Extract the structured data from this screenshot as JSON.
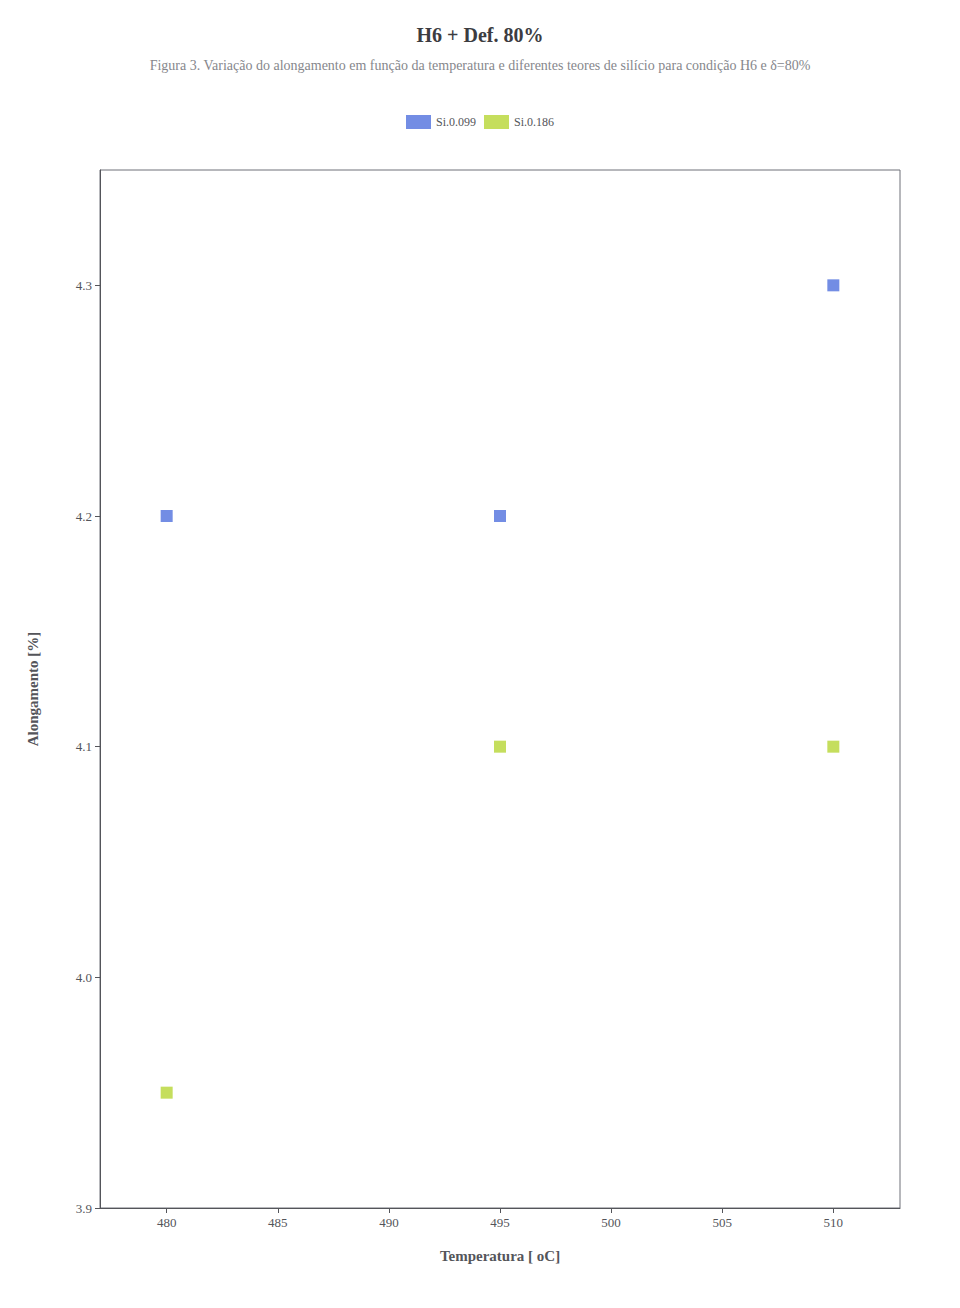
{
  "chart_data": {
    "type": "scatter",
    "title": "H6 + Def. 80%",
    "subtitle": "Figura 3. Variação do alongamento em função da temperatura e diferentes teores de silício para condição H6 e δ=80%",
    "x_label": "Temperatura [ oC]",
    "y_label": "Alongamento [%]",
    "xlim": [
      477,
      513
    ],
    "ylim": [
      3.9,
      4.35
    ],
    "xticks": [
      480,
      485,
      490,
      495,
      500,
      505,
      510
    ],
    "yticks": [
      3.9,
      {
        "value": 4,
        "label": "4.0"
      },
      4.1,
      4.2,
      4.3
    ],
    "marker": "square",
    "grid": false,
    "legend": "top",
    "series": [
      {
        "name": "Si.0.099",
        "x": [
          480,
          495,
          510
        ],
        "values": [
          4.2,
          4.2,
          4.3
        ]
      },
      {
        "name": "Si.0.186",
        "x": [
          480,
          495,
          510
        ],
        "values": [
          3.95,
          4.1,
          4.1
        ]
      }
    ]
  }
}
